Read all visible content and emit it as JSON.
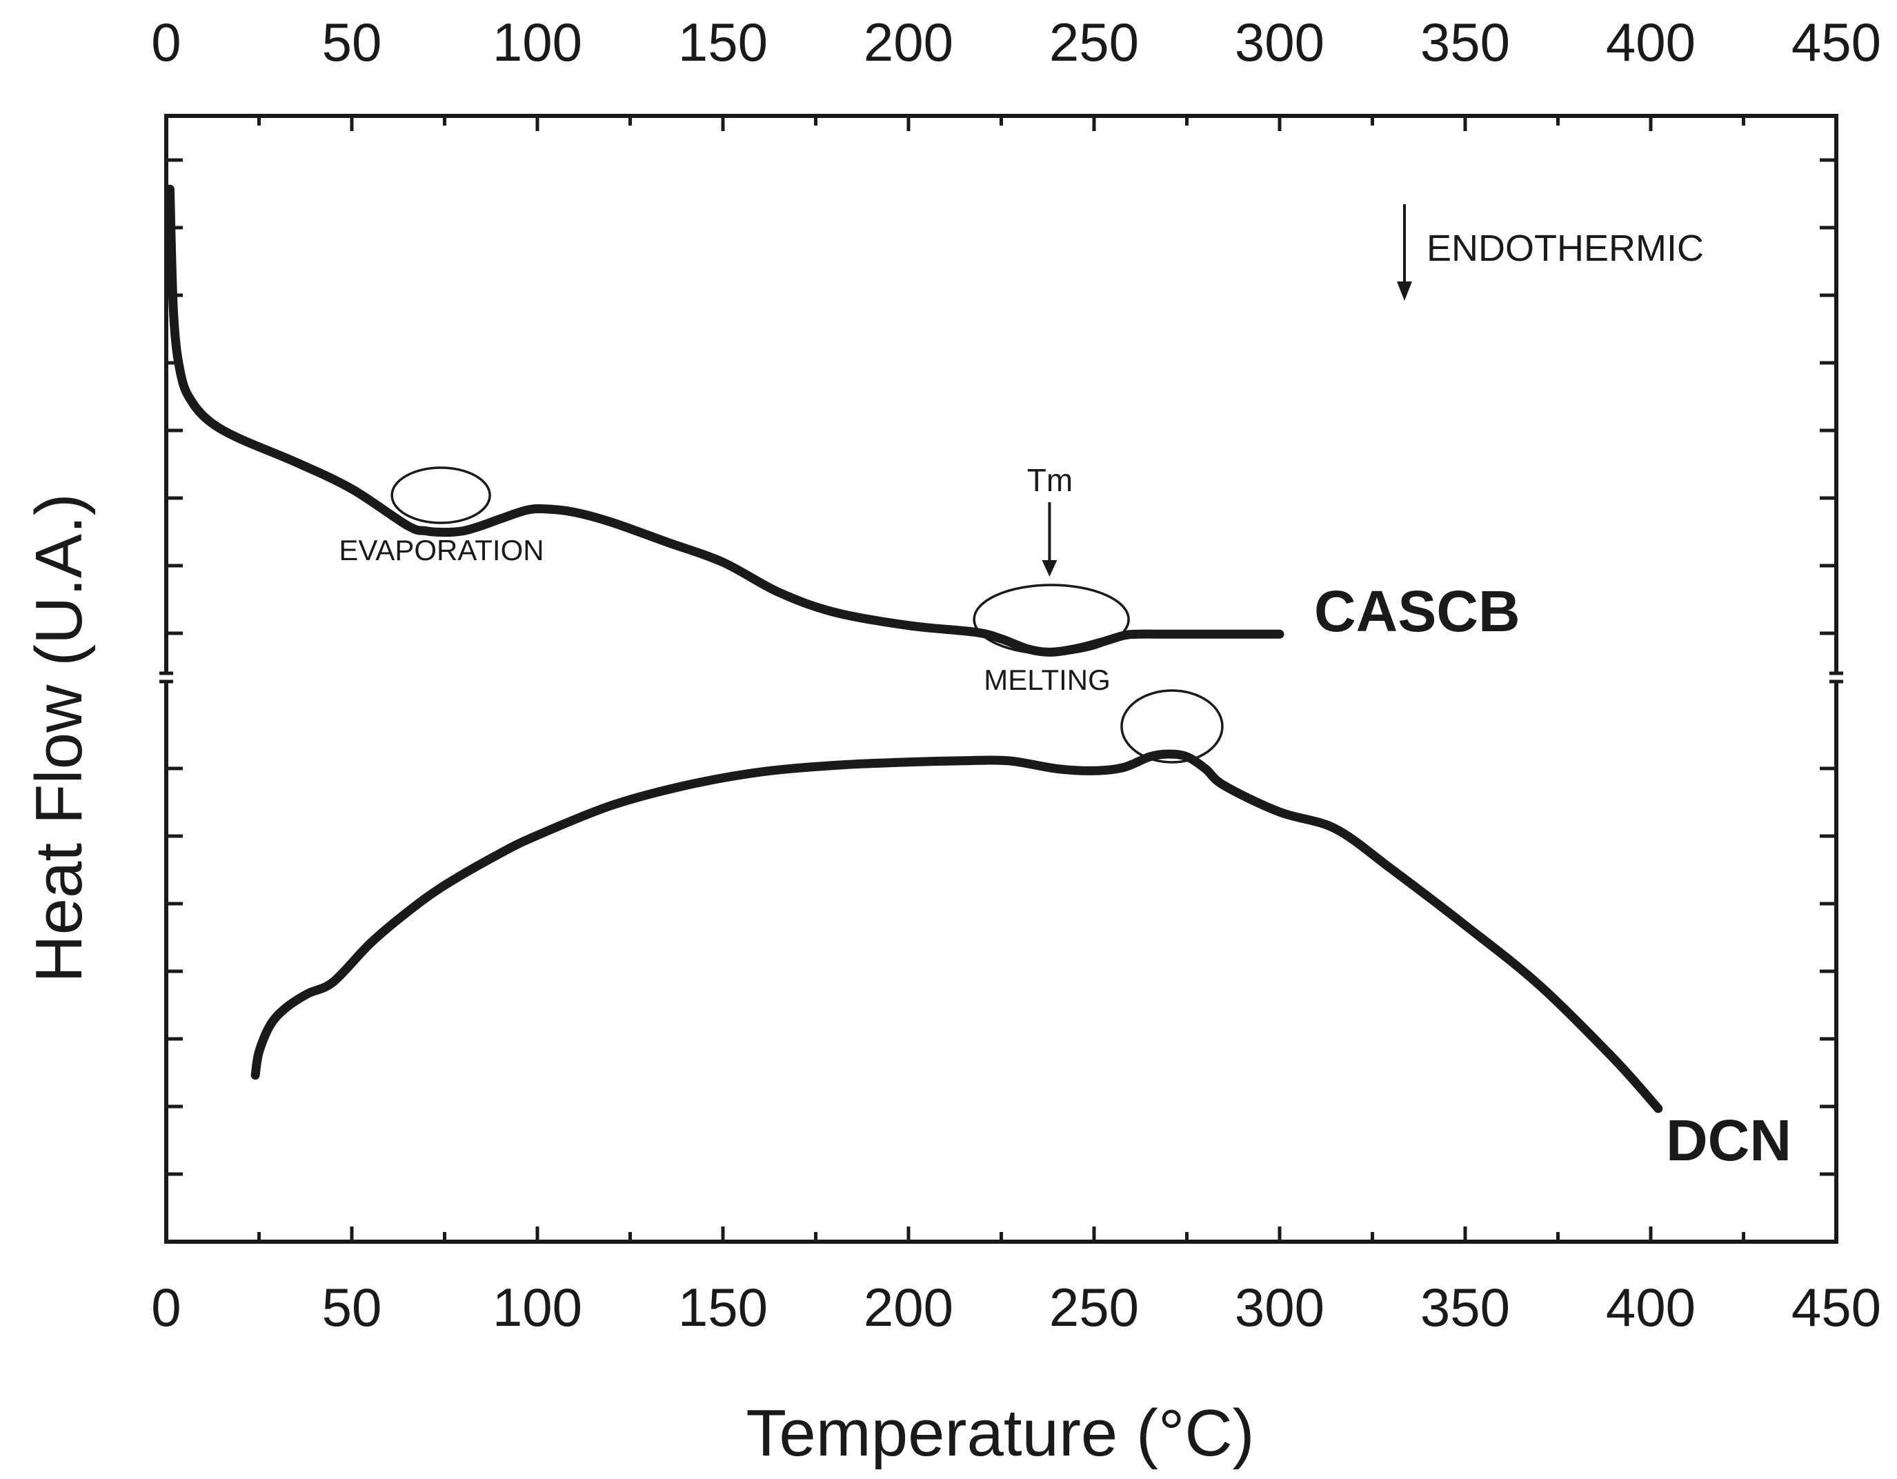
{
  "chart_data": {
    "type": "line",
    "xlabel": "Temperature (°C)",
    "ylabel": "Heat Flow (U.A.)",
    "xlim": [
      0,
      450
    ],
    "x_ticks": [
      "0",
      "50",
      "100",
      "150",
      "200",
      "250",
      "300",
      "350",
      "400",
      "450"
    ],
    "ylim": [
      0,
      16.9
    ],
    "y_tick_labels_shown": false,
    "series": [
      {
        "name": "CASCB",
        "x": [
          1,
          2,
          4,
          7,
          12,
          20,
          35,
          50,
          65,
          70,
          75,
          80,
          85,
          90,
          97,
          102,
          110,
          120,
          135,
          150,
          165,
          180,
          200,
          218,
          225,
          232,
          238,
          245,
          252,
          258,
          262,
          270,
          280,
          300
        ],
        "y": [
          15.8,
          13.9,
          13.0,
          12.6,
          12.3,
          12.05,
          11.7,
          11.3,
          10.75,
          10.67,
          10.65,
          10.67,
          10.75,
          10.85,
          10.98,
          11.0,
          10.95,
          10.8,
          10.5,
          10.2,
          9.75,
          9.45,
          9.25,
          9.15,
          9.05,
          8.9,
          8.85,
          8.9,
          9.0,
          9.1,
          9.12,
          9.12,
          9.12,
          9.12
        ]
      },
      {
        "name": "DCN",
        "x": [
          24,
          25,
          28,
          32,
          38,
          45,
          55,
          65,
          75,
          90,
          100,
          120,
          140,
          160,
          180,
          200,
          215,
          227,
          240,
          250,
          258,
          265,
          270,
          275,
          280,
          285,
          300,
          315,
          330,
          350,
          370,
          390,
          402
        ],
        "y": [
          2.5,
          2.85,
          3.25,
          3.5,
          3.72,
          3.9,
          4.48,
          4.95,
          5.35,
          5.83,
          6.1,
          6.55,
          6.85,
          7.05,
          7.15,
          7.2,
          7.22,
          7.22,
          7.1,
          7.07,
          7.12,
          7.28,
          7.32,
          7.28,
          7.1,
          6.85,
          6.45,
          6.2,
          5.6,
          4.75,
          3.85,
          2.75,
          2.0
        ]
      }
    ],
    "annotations": [
      "ENDOTHERMIC",
      "EVAPORATION",
      "Tm",
      "MELTING"
    ],
    "series_labels": [
      "CASCB",
      "DCN"
    ]
  }
}
